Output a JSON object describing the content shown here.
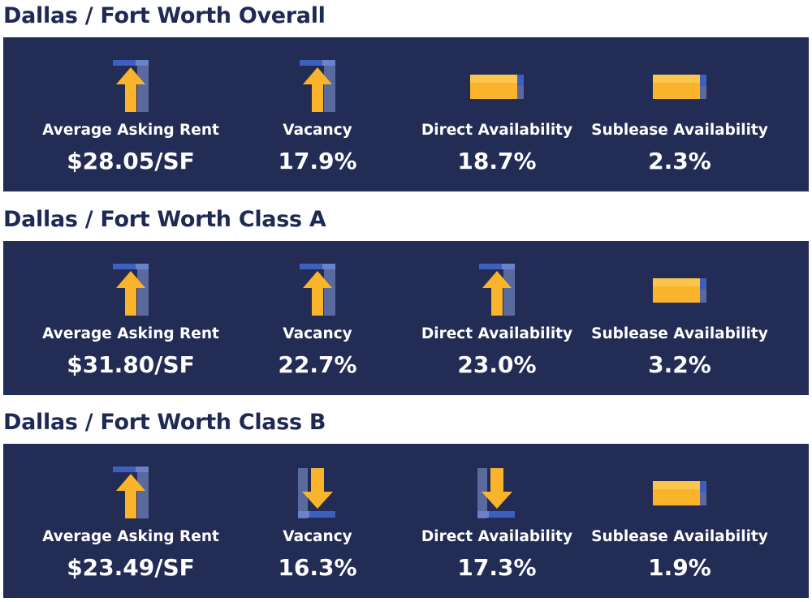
{
  "colors": {
    "panel": "#232c55",
    "title": "#1e2a55",
    "arrow": "#f9b42b",
    "arrow_shadow": "#5b6a9e",
    "bar_blue": "#3d5fbf"
  },
  "sections": [
    {
      "title": "Dallas / Fort Worth Overall",
      "metrics": [
        {
          "label": "Average Asking Rent",
          "value": "$28.05/SF",
          "trend": "up"
        },
        {
          "label": "Vacancy",
          "value": "17.9%",
          "trend": "up"
        },
        {
          "label": "Direct Availability",
          "value": "18.7%",
          "trend": "flat"
        },
        {
          "label": "Sublease Availability",
          "value": "2.3%",
          "trend": "flat"
        }
      ]
    },
    {
      "title": "Dallas / Fort Worth Class A",
      "metrics": [
        {
          "label": "Average Asking Rent",
          "value": "$31.80/SF",
          "trend": "up"
        },
        {
          "label": "Vacancy",
          "value": "22.7%",
          "trend": "up"
        },
        {
          "label": "Direct Availability",
          "value": "23.0%",
          "trend": "up"
        },
        {
          "label": "Sublease Availability",
          "value": "3.2%",
          "trend": "flat"
        }
      ]
    },
    {
      "title": "Dallas / Fort Worth Class B",
      "metrics": [
        {
          "label": "Average Asking Rent",
          "value": "$23.49/SF",
          "trend": "up"
        },
        {
          "label": "Vacancy",
          "value": "16.3%",
          "trend": "down"
        },
        {
          "label": "Direct Availability",
          "value": "17.3%",
          "trend": "down"
        },
        {
          "label": "Sublease Availability",
          "value": "1.9%",
          "trend": "flat"
        }
      ]
    }
  ]
}
